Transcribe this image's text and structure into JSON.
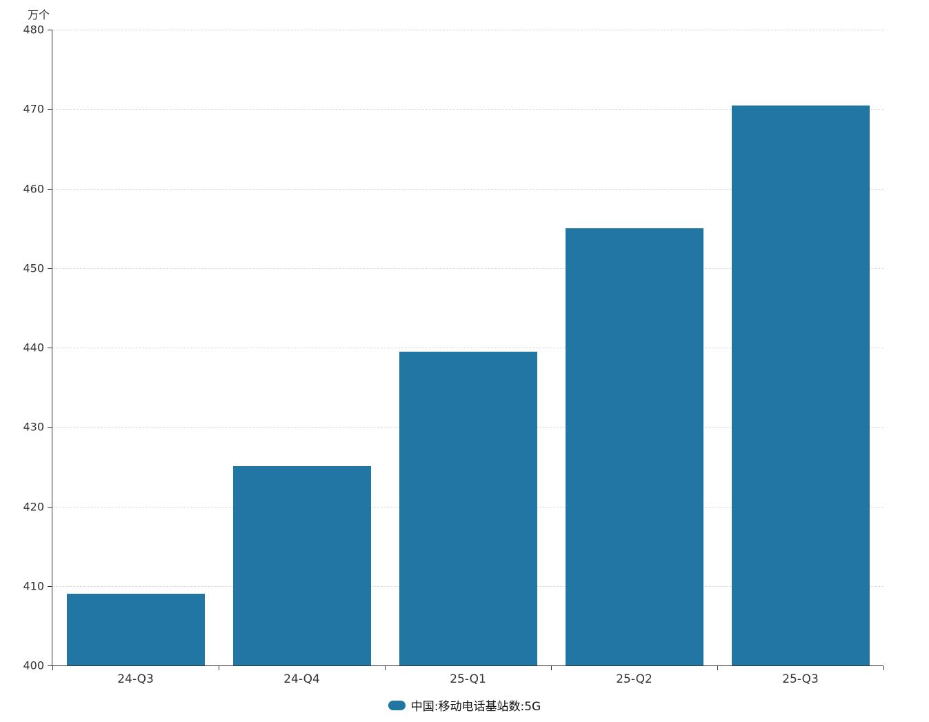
{
  "chart": {
    "unit_label": "万个",
    "bar_color": "#2176A3",
    "legend": {
      "label": "中国:移动电话基站数:5G"
    }
  },
  "chart_data": {
    "type": "bar",
    "title": "",
    "xlabel": "",
    "ylabel": "万个",
    "categories": [
      "24-Q3",
      "24-Q4",
      "25-Q1",
      "25-Q2",
      "25-Q3"
    ],
    "series": [
      {
        "name": "中国:移动电话基站数:5G",
        "values": [
          409.0,
          425.1,
          439.5,
          455.0,
          470.5
        ]
      }
    ],
    "ylim": [
      400,
      480
    ],
    "yticks": [
      400,
      410,
      420,
      430,
      440,
      450,
      460,
      470,
      480
    ],
    "grid": true,
    "grid_style": "dashed",
    "legend_position": "bottom"
  }
}
